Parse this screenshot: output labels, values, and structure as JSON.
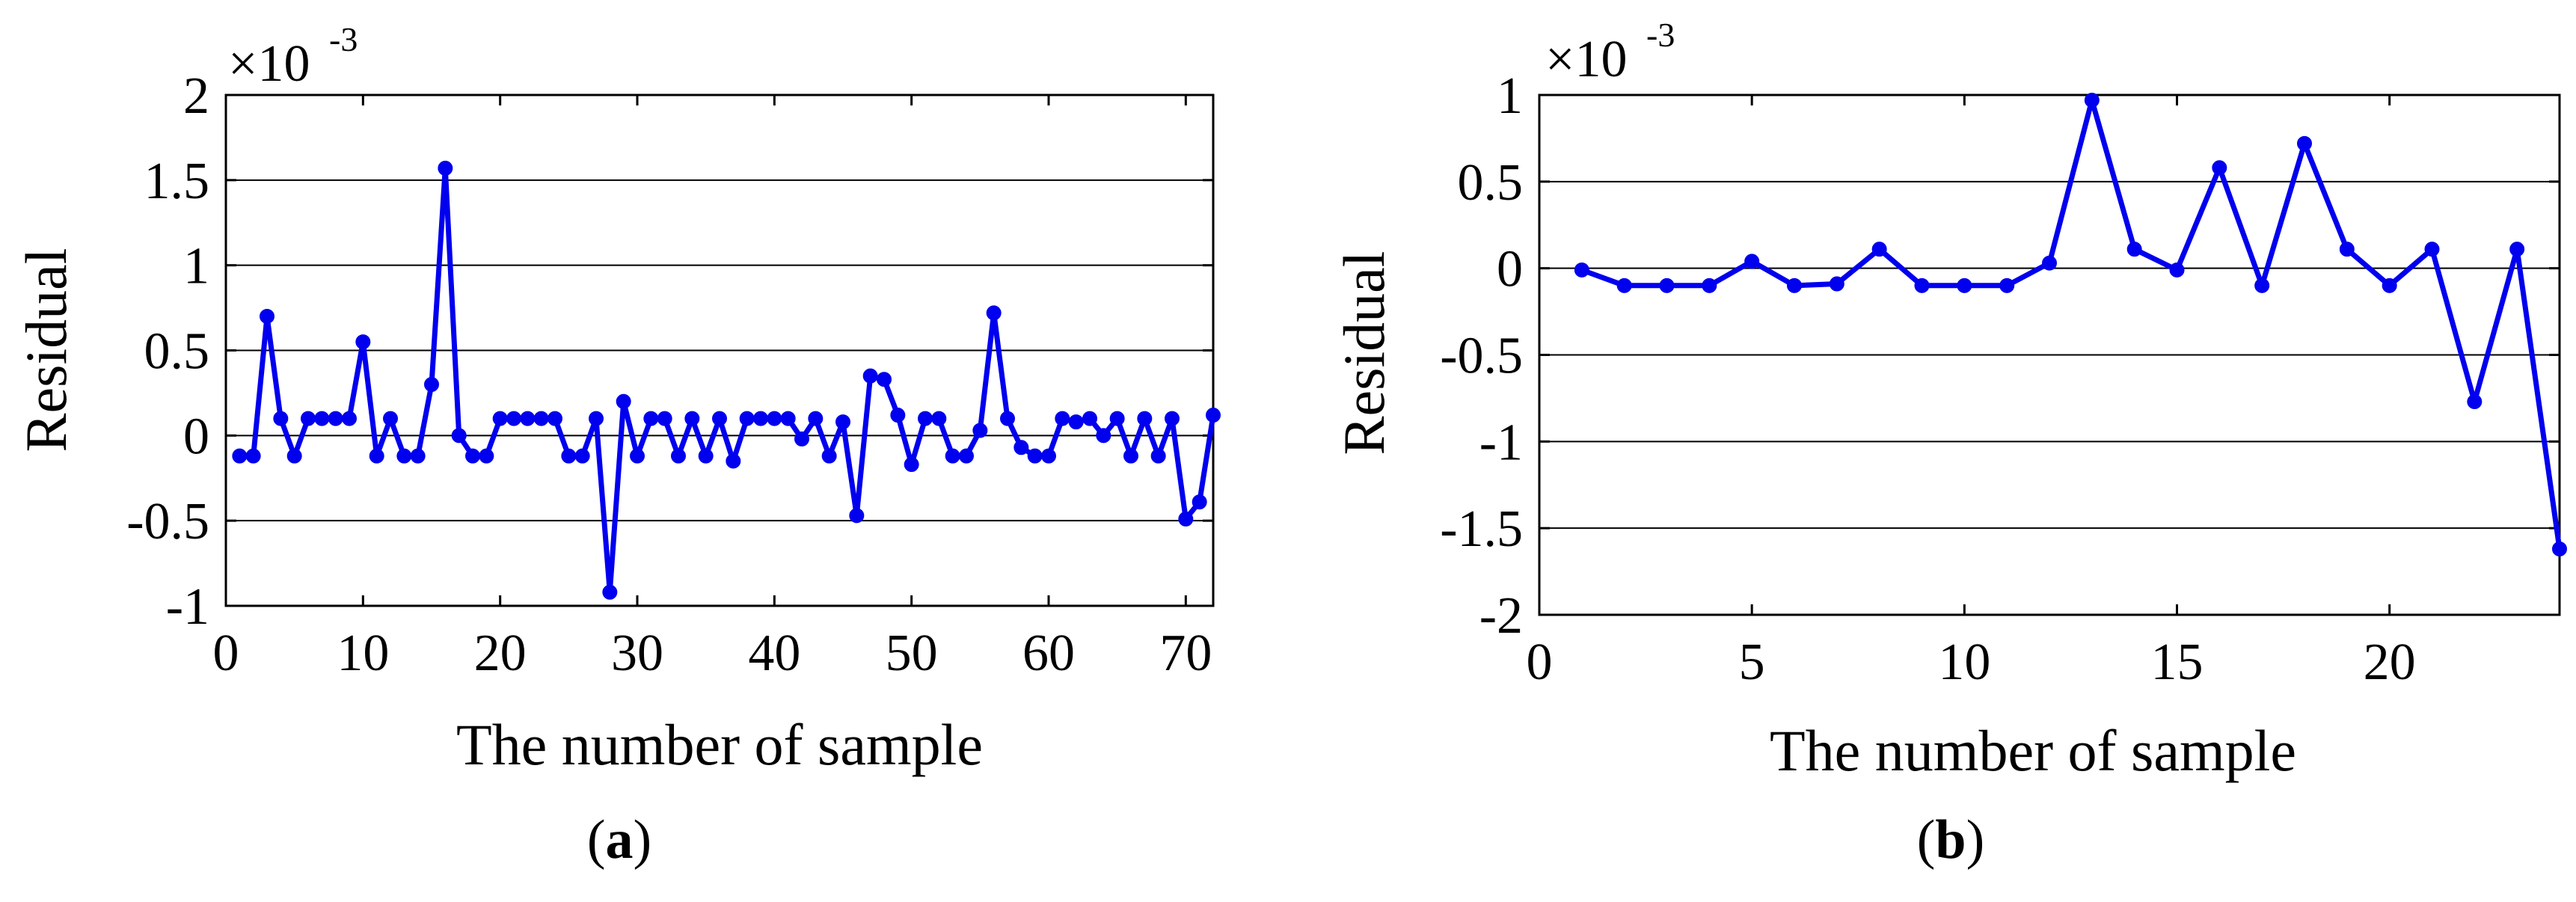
{
  "chart_data": [
    {
      "type": "line",
      "panel_label": "a",
      "xlabel": "The number of sample",
      "ylabel": "Residual",
      "scale_multiplier": "×10",
      "scale_exponent": "-3",
      "xlim": [
        0,
        72
      ],
      "ylim": [
        -1,
        2
      ],
      "xticks": [
        0,
        10,
        20,
        30,
        40,
        50,
        60,
        70
      ],
      "yticks": [
        -1,
        -0.5,
        0,
        0.5,
        1,
        1.5,
        2
      ],
      "grid": "horizontal",
      "color": "#0000ee",
      "series": [
        {
          "x": [
            1,
            2,
            3,
            4,
            5,
            6,
            7,
            8,
            9,
            10,
            11,
            12,
            13,
            14,
            15,
            16,
            17,
            18,
            19,
            20,
            21,
            22,
            23,
            24,
            25,
            26,
            27,
            28,
            29,
            30,
            31,
            32,
            33,
            34,
            35,
            36,
            37,
            38,
            39,
            40,
            41,
            42,
            43,
            44,
            45,
            46,
            47,
            48,
            49,
            50,
            51,
            52,
            53,
            54,
            55,
            56,
            57,
            58,
            59,
            60,
            61,
            62,
            63,
            64,
            65,
            66,
            67,
            68,
            69,
            70,
            71,
            72
          ],
          "y": [
            -0.12,
            -0.12,
            0.7,
            0.1,
            -0.12,
            0.1,
            0.1,
            0.1,
            0.1,
            0.55,
            -0.12,
            0.1,
            -0.12,
            -0.12,
            0.3,
            1.57,
            0.0,
            -0.12,
            -0.12,
            0.1,
            0.1,
            0.1,
            0.1,
            0.1,
            -0.12,
            -0.12,
            0.1,
            -0.92,
            0.2,
            -0.12,
            0.1,
            0.1,
            -0.12,
            0.1,
            -0.12,
            0.1,
            -0.15,
            0.1,
            0.1,
            0.1,
            0.1,
            -0.02,
            0.1,
            -0.12,
            0.08,
            -0.47,
            0.35,
            0.33,
            0.12,
            -0.17,
            0.1,
            0.1,
            -0.12,
            -0.12,
            0.03,
            0.72,
            0.1,
            -0.07,
            -0.12,
            -0.12,
            0.1,
            0.08,
            0.1,
            0.0,
            0.1,
            -0.12,
            0.1,
            -0.12,
            0.1,
            -0.49,
            -0.39,
            0.12
          ]
        }
      ]
    },
    {
      "type": "line",
      "panel_label": "b",
      "xlabel": "The number of sample",
      "ylabel": "Residual",
      "scale_multiplier": "×10",
      "scale_exponent": "-3",
      "xlim": [
        0,
        24
      ],
      "ylim": [
        -2,
        1
      ],
      "xticks": [
        0,
        5,
        10,
        15,
        20
      ],
      "yticks": [
        -2,
        -1.5,
        -1,
        -0.5,
        0,
        0.5,
        1
      ],
      "grid": "horizontal",
      "color": "#0000ee",
      "series": [
        {
          "x": [
            1,
            2,
            3,
            4,
            5,
            6,
            7,
            8,
            9,
            10,
            11,
            12,
            13,
            14,
            15,
            16,
            17,
            18,
            19,
            20,
            21,
            22,
            23,
            24
          ],
          "y": [
            -0.01,
            -0.1,
            -0.1,
            -0.1,
            0.04,
            -0.1,
            -0.09,
            0.11,
            -0.1,
            -0.1,
            -0.1,
            0.03,
            0.97,
            0.11,
            -0.01,
            0.58,
            -0.1,
            0.72,
            0.11,
            -0.1,
            0.11,
            -0.77,
            0.11,
            -1.62
          ]
        }
      ]
    }
  ]
}
